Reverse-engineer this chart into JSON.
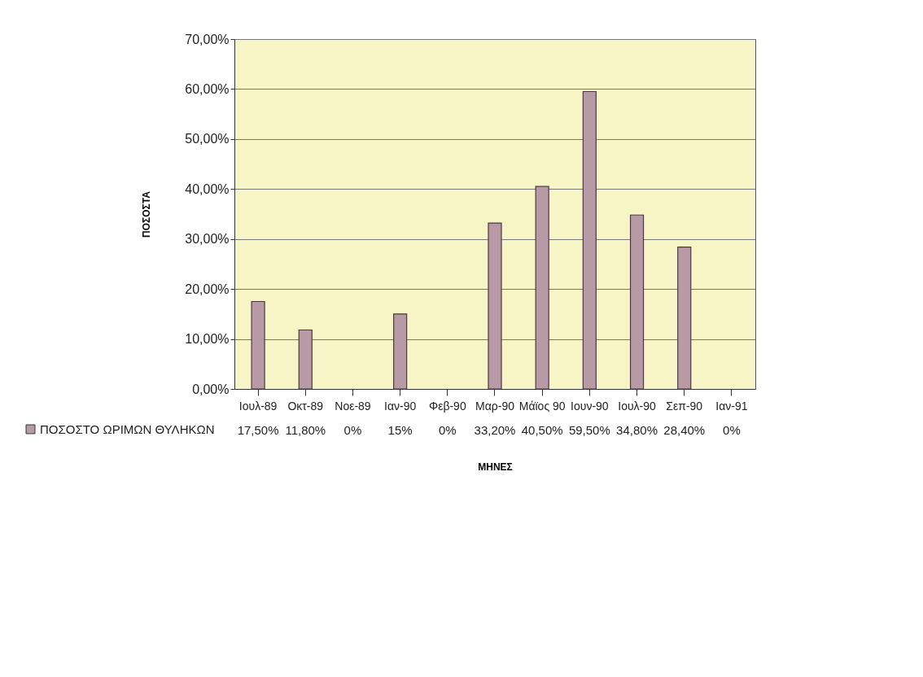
{
  "chart_data": {
    "type": "bar",
    "xlabel": "ΜΗΝΕΣ",
    "ylabel": "ΠΟΣΟΣΤΑ",
    "categories": [
      "Ιουλ-89",
      "Οκτ-89",
      "Νοε-89",
      "Ιαν-90",
      "Φεβ-90",
      "Μαρ-90",
      "Μάϊος 90",
      "Ιουν-90",
      "Ιουλ-90",
      "Σεπ-90",
      "Ιαν-91"
    ],
    "series": [
      {
        "name": "ΠΟΣΟΣΤΟ ΩΡΙΜΩΝ ΘΥΛΗΚΩΝ",
        "color": "#b89aa6",
        "values": [
          17.5,
          11.8,
          0,
          15,
          0,
          33.2,
          40.5,
          59.5,
          34.8,
          28.4,
          0
        ],
        "value_labels": [
          "17,50%",
          "11,80%",
          "0%",
          "15%",
          "0%",
          "33,20%",
          "40,50%",
          "59,50%",
          "34,80%",
          "28,40%",
          "0%"
        ]
      }
    ],
    "ylim": [
      0,
      70
    ],
    "yticks": [
      {
        "value": 0,
        "label": "0,00%"
      },
      {
        "value": 10,
        "label": "10,00%"
      },
      {
        "value": 20,
        "label": "20,00%"
      },
      {
        "value": 30,
        "label": "30,00%"
      },
      {
        "value": 40,
        "label": "40,00%"
      },
      {
        "value": 50,
        "label": "50,00%"
      },
      {
        "value": 60,
        "label": "60,00%"
      },
      {
        "value": 70,
        "label": "70,00%"
      }
    ],
    "grid": "y",
    "legend": "bottom left"
  }
}
